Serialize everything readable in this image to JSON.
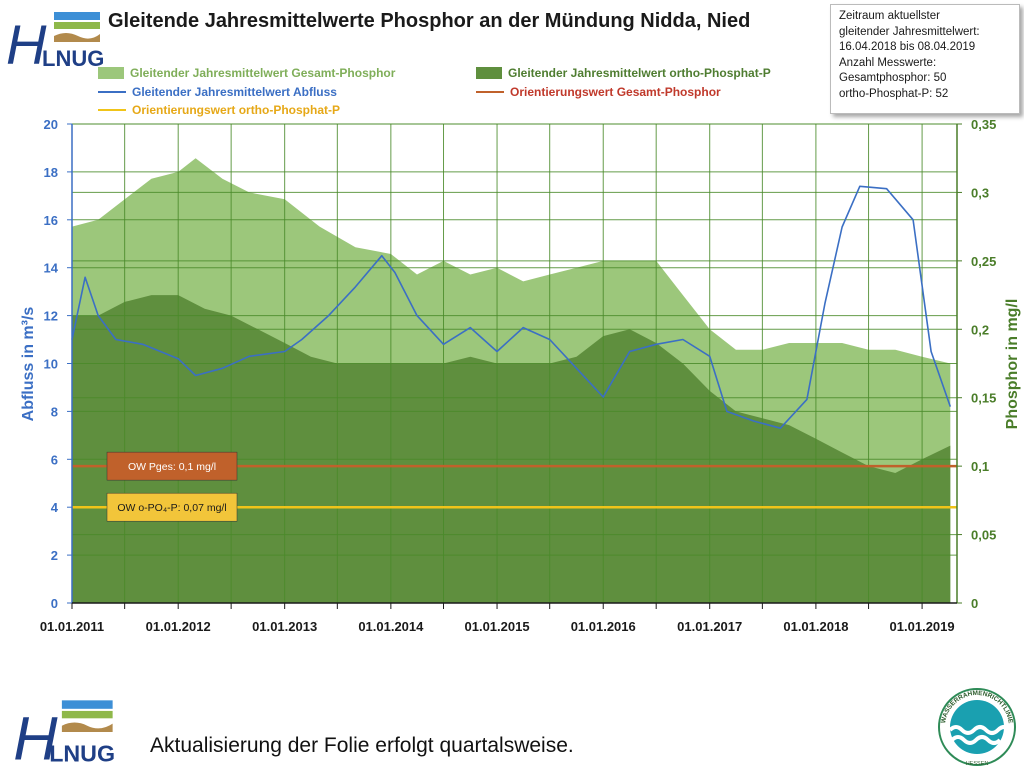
{
  "title": "Gleitende Jahresmittelwerte Phosphor an der Mündung Nidda, Nied",
  "logo_text": "HLNUG",
  "infobox": {
    "lines": [
      "Zeitraum aktuellster",
      "gleitender Jahresmittelwert:",
      "16.04.2018 bis 08.04.2019",
      "Anzahl Messwerte:",
      "Gesamtphosphor: 50",
      "ortho-Phosphat-P: 52"
    ]
  },
  "footer": {
    "text": "Aktualisierung der Folie erfolgt quartalsweise."
  },
  "badge_text": {
    "top": "WASSERRAHMENRICHTLINIE",
    "bottom": "HESSEN"
  },
  "colors": {
    "gesamt_fill": "#9cc77b",
    "ortho_fill": "#5f8f3e",
    "abfluss_line": "#3b6fc4",
    "ow_gesamt": "#c0612b",
    "ow_ortho": "#f0c419",
    "axis_left": "#3b6fc4",
    "axis_right": "#4a7d29"
  },
  "chart_data": {
    "type": "area",
    "title": "Gleitende Jahresmittelwerte Phosphor an der Mündung Nidda, Nied",
    "xlabel": "",
    "ylabel_left": "Abfluss in m³/s",
    "ylabel_right": "Phosphor in mg/l",
    "x_range": [
      "01.01.2011",
      "01.05.2019"
    ],
    "x_ticks": [
      "01.01.2011",
      "01.01.2012",
      "01.01.2013",
      "01.01.2014",
      "01.01.2015",
      "01.01.2016",
      "01.01.2017",
      "01.01.2018",
      "01.01.2019"
    ],
    "y_left": {
      "min": 0,
      "max": 20,
      "ticks": [
        "0",
        "2",
        "4",
        "6",
        "8",
        "10",
        "12",
        "14",
        "16",
        "18",
        "20"
      ]
    },
    "y_right": {
      "min": 0,
      "max": 0.35,
      "ticks": [
        "0",
        "0,05",
        "0,1",
        "0,15",
        "0,2",
        "0,25",
        "0,3",
        "0,35"
      ]
    },
    "grid": true,
    "legend_placement": "top",
    "series": [
      {
        "name": "Gleitender Jahresmittelwert Gesamt-Phosphor",
        "axis": "right",
        "kind": "area",
        "x": [
          "2011-01-01",
          "2011-04-01",
          "2011-07-01",
          "2011-10-01",
          "2012-01-01",
          "2012-03-01",
          "2012-06-01",
          "2012-09-01",
          "2013-01-01",
          "2013-05-01",
          "2013-09-01",
          "2014-01-01",
          "2014-04-01",
          "2014-07-01",
          "2014-10-01",
          "2015-01-01",
          "2015-04-01",
          "2015-07-01",
          "2015-10-01",
          "2016-01-01",
          "2016-04-01",
          "2016-07-01",
          "2016-10-01",
          "2017-01-01",
          "2017-04-01",
          "2017-07-01",
          "2017-10-01",
          "2018-01-01",
          "2018-04-01",
          "2018-07-01",
          "2018-10-01",
          "2019-01-01",
          "2019-04-08"
        ],
        "values": [
          0.275,
          0.28,
          0.295,
          0.31,
          0.315,
          0.325,
          0.31,
          0.3,
          0.295,
          0.275,
          0.26,
          0.255,
          0.24,
          0.25,
          0.24,
          0.245,
          0.235,
          0.24,
          0.245,
          0.25,
          0.25,
          0.25,
          0.225,
          0.2,
          0.185,
          0.185,
          0.19,
          0.19,
          0.19,
          0.185,
          0.185,
          0.18,
          0.175
        ]
      },
      {
        "name": "Gleitender Jahresmittelwert ortho-Phosphat-P",
        "axis": "right",
        "kind": "area",
        "x": [
          "2011-01-01",
          "2011-04-01",
          "2011-07-01",
          "2011-10-01",
          "2012-01-01",
          "2012-04-01",
          "2012-07-01",
          "2012-10-01",
          "2013-01-01",
          "2013-04-01",
          "2013-07-01",
          "2013-10-01",
          "2014-01-01",
          "2014-04-01",
          "2014-07-01",
          "2014-10-01",
          "2015-01-01",
          "2015-04-01",
          "2015-07-01",
          "2015-10-01",
          "2016-01-01",
          "2016-04-01",
          "2016-07-01",
          "2016-10-01",
          "2017-01-01",
          "2017-04-01",
          "2017-07-01",
          "2017-10-01",
          "2018-01-01",
          "2018-04-01",
          "2018-07-01",
          "2018-10-01",
          "2019-01-01",
          "2019-04-08"
        ],
        "values": [
          0.21,
          0.21,
          0.22,
          0.225,
          0.225,
          0.215,
          0.21,
          0.2,
          0.19,
          0.18,
          0.175,
          0.175,
          0.175,
          0.175,
          0.175,
          0.18,
          0.175,
          0.175,
          0.175,
          0.18,
          0.195,
          0.2,
          0.19,
          0.175,
          0.155,
          0.14,
          0.135,
          0.13,
          0.12,
          0.11,
          0.1,
          0.095,
          0.105,
          0.115
        ]
      },
      {
        "name": "Gleitender Jahresmittelwert Abfluss",
        "axis": "left",
        "kind": "line",
        "x": [
          "2011-01-01",
          "2011-02-15",
          "2011-04-01",
          "2011-06-01",
          "2011-09-01",
          "2012-01-01",
          "2012-03-01",
          "2012-06-01",
          "2012-09-01",
          "2013-01-01",
          "2013-03-01",
          "2013-06-01",
          "2013-09-01",
          "2013-12-01",
          "2014-01-15",
          "2014-04-01",
          "2014-07-01",
          "2014-10-01",
          "2015-01-01",
          "2015-04-01",
          "2015-07-01",
          "2015-10-01",
          "2016-01-01",
          "2016-04-01",
          "2016-07-01",
          "2016-10-01",
          "2017-01-01",
          "2017-03-01",
          "2017-06-01",
          "2017-09-01",
          "2017-12-01",
          "2018-02-01",
          "2018-04-01",
          "2018-06-01",
          "2018-09-01",
          "2018-12-01",
          "2019-02-01",
          "2019-04-08"
        ],
        "values": [
          11.0,
          13.6,
          12.0,
          11.0,
          10.8,
          10.2,
          9.5,
          9.8,
          10.3,
          10.5,
          11.0,
          12.0,
          13.2,
          14.5,
          13.8,
          12.0,
          10.8,
          11.5,
          10.5,
          11.5,
          11.0,
          9.8,
          8.6,
          10.5,
          10.8,
          11.0,
          10.3,
          8.0,
          7.6,
          7.3,
          8.5,
          12.5,
          15.7,
          17.4,
          17.3,
          16.0,
          10.5,
          8.2
        ]
      }
    ],
    "reference_lines": [
      {
        "name": "Orientierungswert Gesamt-Phosphor",
        "axis": "right",
        "value": 0.1,
        "label": "OW Pges: 0,1 mg/l"
      },
      {
        "name": "Orientierungswert ortho-Phosphat-P",
        "axis": "right",
        "value": 0.07,
        "label": "OW o-PO₄-P: 0,07 mg/l"
      }
    ]
  }
}
